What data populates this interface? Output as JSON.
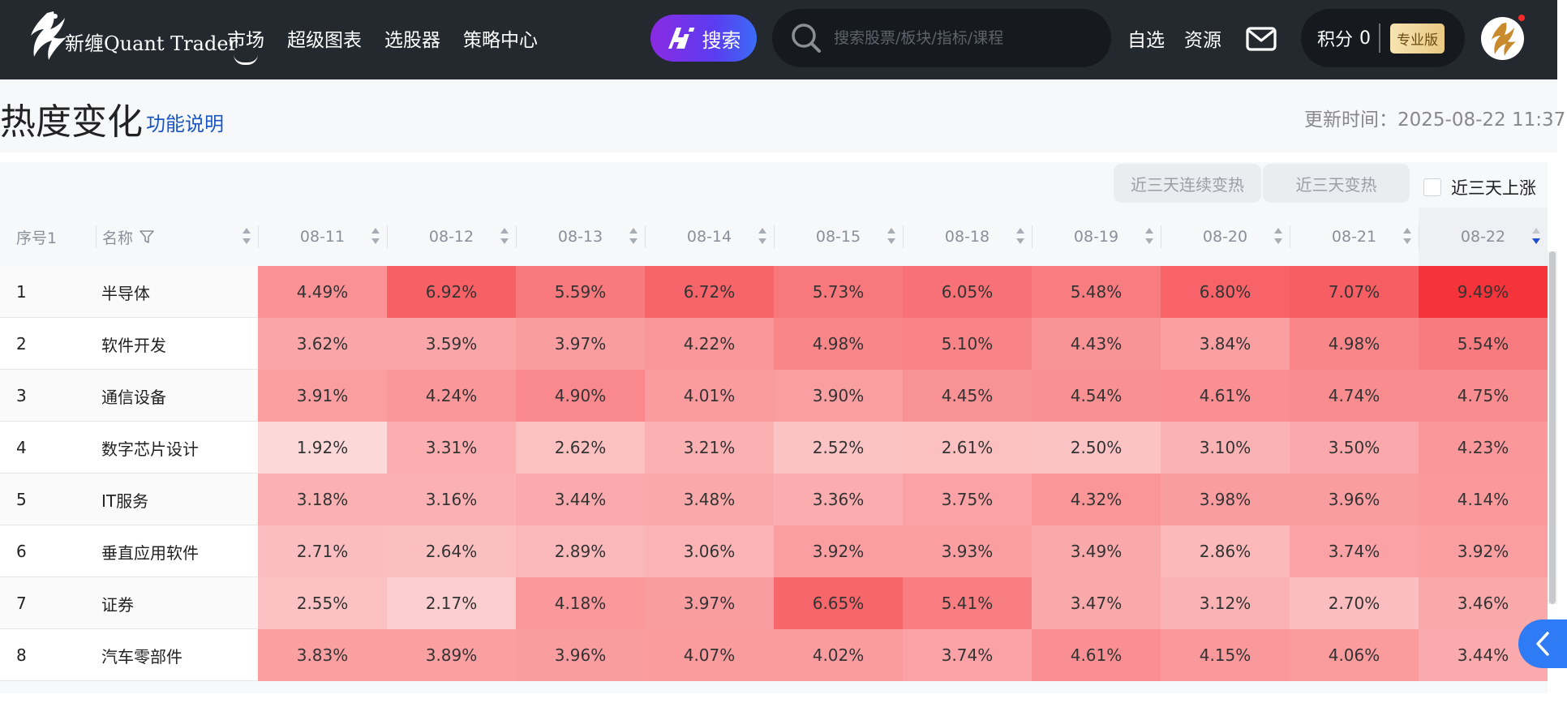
{
  "header": {
    "brand": "新缠Quant Trader",
    "nav": [
      {
        "label": "市场",
        "active": true
      },
      {
        "label": "超级图表",
        "active": false
      },
      {
        "label": "选股器",
        "active": false
      },
      {
        "label": "策略中心",
        "active": false
      }
    ],
    "ai_search_label": "搜索",
    "search_placeholder": "搜索股票/板块/指标/课程",
    "watchlist_label": "自选",
    "resources_label": "资源",
    "points_label": "积分",
    "points_value": "0",
    "pro_badge": "专业版",
    "icons": [
      "phoenix-logo-icon",
      "ai-icon",
      "search-icon",
      "mail-icon",
      "avatar"
    ]
  },
  "page": {
    "title": "热度变化",
    "help_link": "功能说明",
    "update_time": "更新时间：2025-08-22 11:37"
  },
  "filters": {
    "btn_consecutive_hot": "近三天连续变热",
    "btn_hot": "近三天变热",
    "checkbox_label": "近三天上涨",
    "checkbox_checked": false
  },
  "table": {
    "col_index": "序号1",
    "col_name": "名称",
    "dates": [
      "08-11",
      "08-12",
      "08-13",
      "08-14",
      "08-15",
      "08-18",
      "08-19",
      "08-20",
      "08-21",
      "08-22"
    ],
    "sorted_column": "08-22",
    "sort_direction": "desc",
    "rows": [
      {
        "idx": "1",
        "name": "半导体",
        "values": [
          "4.49%",
          "6.92%",
          "5.59%",
          "6.72%",
          "5.73%",
          "6.05%",
          "5.48%",
          "6.80%",
          "7.07%",
          "9.49%"
        ]
      },
      {
        "idx": "2",
        "name": "软件开发",
        "values": [
          "3.62%",
          "3.59%",
          "3.97%",
          "4.22%",
          "4.98%",
          "5.10%",
          "4.43%",
          "3.84%",
          "4.98%",
          "5.54%"
        ]
      },
      {
        "idx": "3",
        "name": "通信设备",
        "values": [
          "3.91%",
          "4.24%",
          "4.90%",
          "4.01%",
          "3.90%",
          "4.45%",
          "4.54%",
          "4.61%",
          "4.74%",
          "4.75%"
        ]
      },
      {
        "idx": "4",
        "name": "数字芯片设计",
        "values": [
          "1.92%",
          "3.31%",
          "2.62%",
          "3.21%",
          "2.52%",
          "2.61%",
          "2.50%",
          "3.10%",
          "3.50%",
          "4.23%"
        ]
      },
      {
        "idx": "5",
        "name": "IT服务",
        "values": [
          "3.18%",
          "3.16%",
          "3.44%",
          "3.48%",
          "3.36%",
          "3.75%",
          "4.32%",
          "3.98%",
          "3.96%",
          "4.14%"
        ]
      },
      {
        "idx": "6",
        "name": "垂直应用软件",
        "values": [
          "2.71%",
          "2.64%",
          "2.89%",
          "3.06%",
          "3.92%",
          "3.93%",
          "3.49%",
          "2.86%",
          "3.74%",
          "3.92%"
        ]
      },
      {
        "idx": "7",
        "name": "证券",
        "values": [
          "2.55%",
          "2.17%",
          "4.18%",
          "3.97%",
          "6.65%",
          "5.41%",
          "3.47%",
          "3.12%",
          "2.70%",
          "3.46%"
        ]
      },
      {
        "idx": "8",
        "name": "汽车零部件",
        "values": [
          "3.83%",
          "3.89%",
          "3.96%",
          "4.07%",
          "4.02%",
          "3.74%",
          "4.61%",
          "4.15%",
          "4.06%",
          "3.44%"
        ]
      }
    ]
  },
  "colors": {
    "topbar": "#24292f",
    "heat_low": "#fde0e0",
    "heat_high": "#f5333a",
    "link": "#1a56c4",
    "ai_gradient_start": "#8a2be2",
    "ai_gradient_end": "#3b6cf6"
  }
}
